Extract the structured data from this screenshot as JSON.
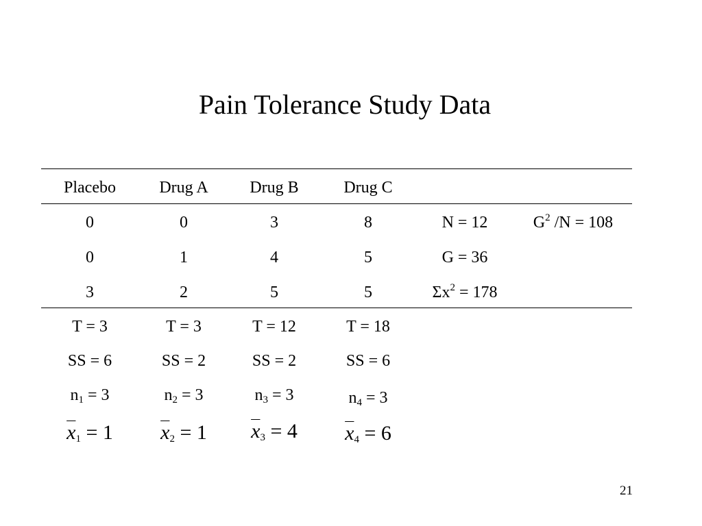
{
  "title": "Pain Tolerance Study Data",
  "table": {
    "headers": [
      "Placebo",
      "Drug A",
      "Drug B",
      "Drug C"
    ],
    "rows": [
      [
        "0",
        "0",
        "3",
        "8"
      ],
      [
        "0",
        "1",
        "4",
        "5"
      ],
      [
        "3",
        "2",
        "5",
        "5"
      ]
    ],
    "summary": {
      "N": "N = 12",
      "G2N_base": "G",
      "G2N_exp": "2",
      "G2N_rest": " /N = 108",
      "G": "G = 36",
      "sumx2_prefix": "Σx",
      "sumx2_exp": "2",
      "sumx2_rest": " = 178"
    }
  },
  "group_stats": [
    {
      "T": "T = 3",
      "SS": "SS = 6",
      "n_base": "n",
      "n_sub": "1",
      "n_rest": " = 3",
      "mean_var": "x",
      "mean_sub": "1",
      "mean_val": " = 1"
    },
    {
      "T": "T = 3",
      "SS": "SS = 2",
      "n_base": "n",
      "n_sub": "2",
      "n_rest": " = 3",
      "mean_var": "x",
      "mean_sub": "2",
      "mean_val": " = 1"
    },
    {
      "T": "T = 12",
      "SS": "SS = 2",
      "n_base": "n",
      "n_sub": "3",
      "n_rest": " = 3",
      "mean_var": "x",
      "mean_sub": "3",
      "mean_val": " = 4"
    },
    {
      "T": "T = 18",
      "SS": "SS = 6",
      "n_base": "n",
      "n_sub": "4",
      "n_rest": " = 3",
      "mean_var": "x",
      "mean_sub": "4",
      "mean_val": " = 6"
    }
  ],
  "page_number": "21"
}
